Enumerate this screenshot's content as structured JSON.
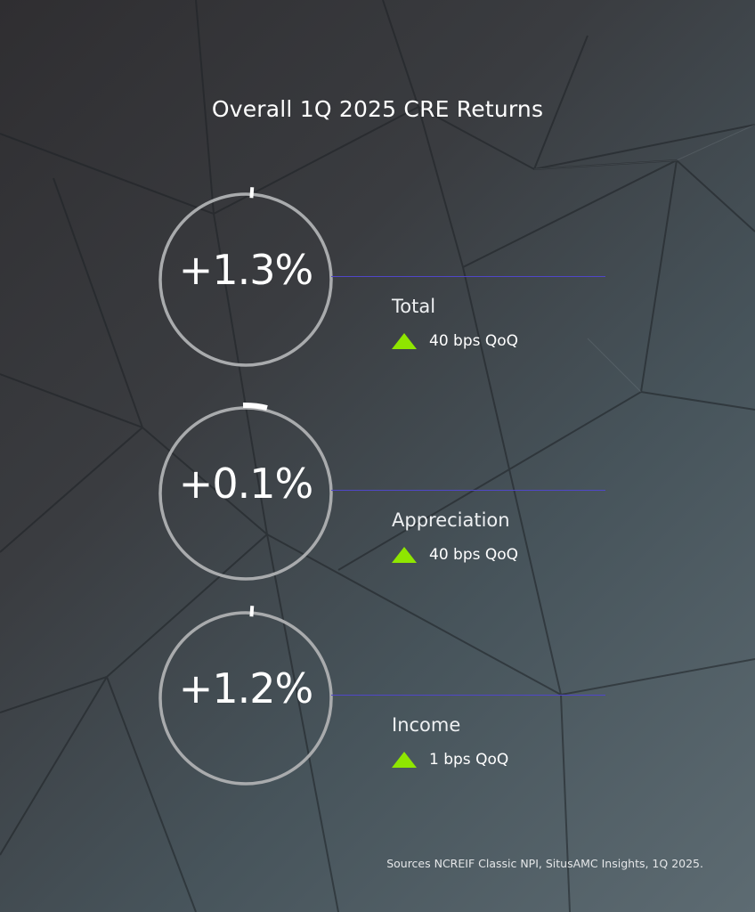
{
  "title": "Overall 1Q 2025 CRE Returns",
  "colors": {
    "ring": "#a9abad",
    "ring_marker": "#ffffff",
    "connector": "#5047c8",
    "increase_arrow": "#8fe600"
  },
  "metrics": [
    {
      "value": "+1.3%",
      "label": "Total",
      "change": "40 bps QoQ",
      "direction": "up"
    },
    {
      "value": "+0.1%",
      "label": "Appreciation",
      "change": "40 bps QoQ",
      "direction": "up"
    },
    {
      "value": "+1.2%",
      "label": "Income",
      "change": "1 bps QoQ",
      "direction": "up"
    }
  ],
  "source": "Sources NCREIF Classic NPI, SitusAMC Insights, 1Q 2025.",
  "icons": {
    "increase": "triangle-up-icon"
  }
}
